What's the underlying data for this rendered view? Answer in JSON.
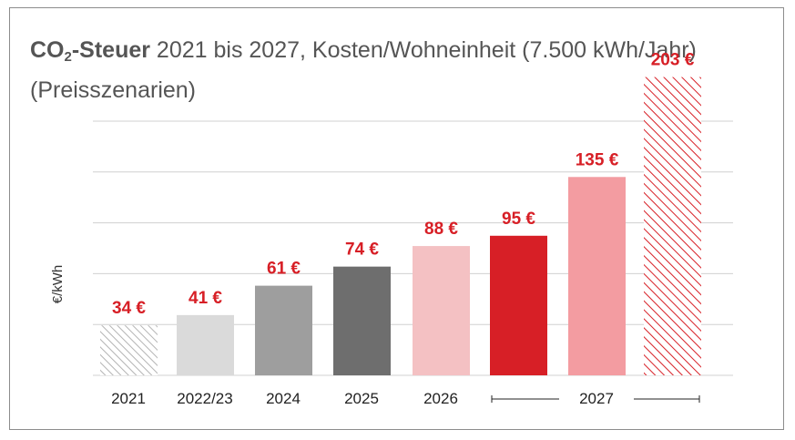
{
  "title": {
    "co2_main": "CO",
    "co2_sub": "2",
    "bold_suffix": "-Steuer",
    "rest": " 2021 bis 2027, Kosten/Wohneinheit (7.500 kWh/Jahr)",
    "subtitle": "(Preisszenarien)"
  },
  "chart_data": {
    "type": "bar",
    "ylabel": "€/kWh",
    "xlabel": "",
    "ylim": [
      0,
      205
    ],
    "grid": true,
    "gridlines": [
      0,
      34.6,
      69.2,
      103.8,
      138.4,
      173
    ],
    "categories": [
      "2021",
      "2022/23",
      "2024",
      "2025",
      "2026",
      "2027",
      "2027",
      "2027"
    ],
    "x_tick_labels": [
      "2021",
      "2022/23",
      "2024",
      "2025",
      "2026",
      "2027"
    ],
    "values": [
      34,
      41,
      61,
      74,
      88,
      95,
      135,
      203
    ],
    "value_labels": [
      "34 €",
      "41 €",
      "61 €",
      "74 €",
      "88 €",
      "95 €",
      "135 €",
      "203 €"
    ],
    "colors": [
      "#c8c8c8",
      "#dadada",
      "#9e9e9e",
      "#6e6e6e",
      "#f4c1c3",
      "#d71f26",
      "#f39ca1",
      "#d71f26"
    ],
    "hatched": [
      true,
      false,
      false,
      false,
      false,
      false,
      false,
      true
    ],
    "label_color": "#d71f26"
  }
}
